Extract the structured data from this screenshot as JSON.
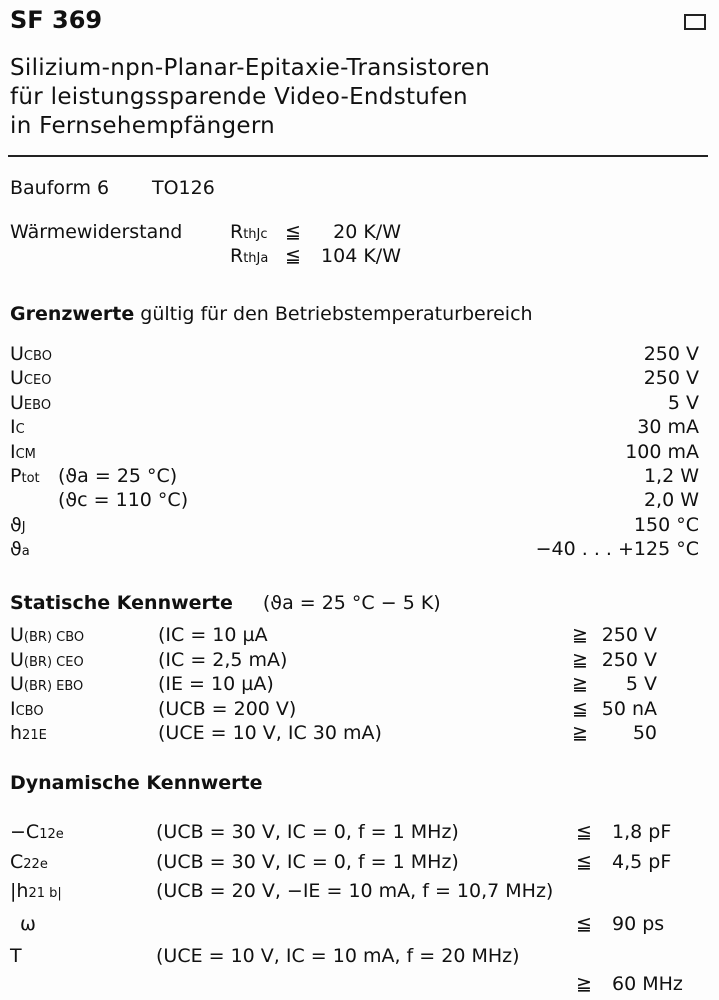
{
  "title": "SF 369",
  "subtitle": [
    "Silizium-npn-Planar-Epitaxie-Transistoren",
    "für leistungssparende Video-Endstufen",
    "in Fernsehempfängern"
  ],
  "bauform": {
    "label": "Bauform 6",
    "package": "TO126"
  },
  "waerme": {
    "label": "Wärmewiderstand",
    "rows": [
      {
        "sym": "R",
        "sub": "thJc",
        "rel": "≦",
        "val": "20 K/W"
      },
      {
        "sym": "R",
        "sub": "thJa",
        "rel": "≦",
        "val": "104 K/W"
      }
    ]
  },
  "grenz": {
    "heading_bold": "Grenzwerte",
    "heading_rest": "gültig für den Betriebstemperaturbereich",
    "rows": [
      {
        "sym": "U",
        "sub": "CBO",
        "cond": "",
        "val": "250 V"
      },
      {
        "sym": "U",
        "sub": "CEO",
        "cond": "",
        "val": "250 V"
      },
      {
        "sym": "U",
        "sub": "EBO",
        "cond": "",
        "val": "5 V"
      },
      {
        "sym": "I",
        "sub": "C",
        "cond": "",
        "val": "30 mA"
      },
      {
        "sym": "I",
        "sub": "CM",
        "cond": "",
        "val": "100 mA"
      },
      {
        "sym": "P",
        "sub": "tot",
        "cond": "(ϑa = 25 °C)",
        "val": "1,2 W"
      },
      {
        "sym": "",
        "sub": "",
        "cond": "(ϑc = 110 °C)",
        "val": "2,0 W"
      },
      {
        "sym": "ϑ",
        "sub": "J",
        "cond": "",
        "val": "150 °C"
      },
      {
        "sym": "ϑ",
        "sub": "a",
        "cond": "",
        "val": "−40 . . . +125 °C"
      }
    ]
  },
  "statisch": {
    "heading": "Statische Kennwerte",
    "cond": "(ϑa = 25 °C − 5 K)",
    "rows": [
      {
        "sym": "U",
        "sub": "(BR) CBO",
        "cond": "(IC = 10 µA",
        "rel": "≧",
        "val": "250 V"
      },
      {
        "sym": "U",
        "sub": "(BR) CEO",
        "cond": "(IC = 2,5 mA)",
        "rel": "≧",
        "val": "250 V"
      },
      {
        "sym": "U",
        "sub": "(BR) EBO",
        "cond": "(IE = 10 µA)",
        "rel": "≧",
        "val": "5 V"
      },
      {
        "sym": "I",
        "sub": "CBO",
        "cond": "(UCB = 200 V)",
        "rel": "≦",
        "val": "50 nA"
      },
      {
        "sym": "h",
        "sub": "21E",
        "cond": "(UCE = 10 V, IC 30 mA)",
        "rel": "≧",
        "val": "50"
      }
    ]
  },
  "dynamisch": {
    "heading": "Dynamische Kennwerte",
    "rows": [
      {
        "sym": "−C",
        "sub": "12e",
        "cond": "(UCB = 30 V,   IC = 0, f = 1 MHz)",
        "rel": "≦",
        "val": "1,8 pF"
      },
      {
        "sym": "C",
        "sub": "22e",
        "cond": "(UCB = 30 V,   IC = 0, f = 1 MHz)",
        "rel": "≦",
        "val": "4,5 pF"
      },
      {
        "sym": "|h",
        "sub": "21 b|",
        "cond": "(UCB = 20 V,  −IE = 10 mA, f = 10,7 MHz)",
        "rel": "",
        "val": ""
      },
      {
        "sym": "ω",
        "sub": "",
        "cond": "",
        "rel": "≦",
        "val": "90 ps"
      },
      {
        "sym": "T",
        "sub": "",
        "cond": "(UCE = 10 V, IC = 10 mA, f = 20 MHz)",
        "rel": "",
        "val": ""
      },
      {
        "sym": "",
        "sub": "",
        "cond": "",
        "rel": "≧",
        "val": "60 MHz"
      }
    ]
  }
}
